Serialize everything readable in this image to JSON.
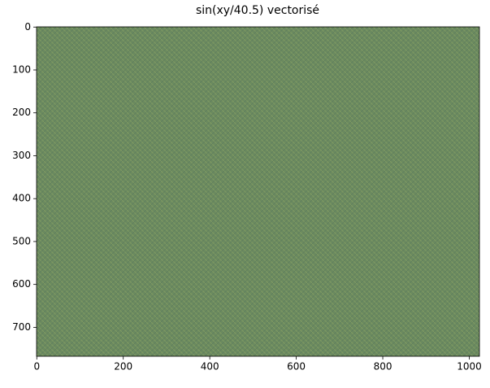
{
  "chart_data": {
    "type": "image",
    "title": "sin(xy/40.5) vectorisé",
    "xlim": [
      -0.5,
      1023.5
    ],
    "ylim": [
      767.5,
      -0.5
    ],
    "xticks": [
      0,
      200,
      400,
      600,
      800,
      1000
    ],
    "yticks": [
      0,
      100,
      200,
      300,
      400,
      500,
      600,
      700
    ]
  }
}
